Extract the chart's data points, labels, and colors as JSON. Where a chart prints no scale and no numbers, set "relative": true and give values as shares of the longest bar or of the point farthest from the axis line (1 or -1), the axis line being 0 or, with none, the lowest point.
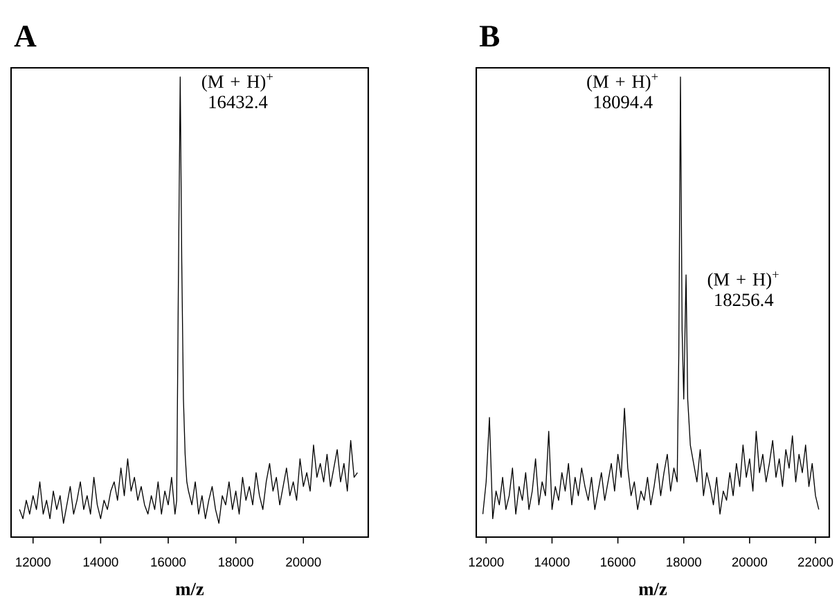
{
  "chart_data": [
    {
      "type": "line",
      "title": "A",
      "xlabel": "m/z",
      "relative": true,
      "xlim": [
        11350,
        21920
      ],
      "xticks": [
        12000,
        14000,
        16000,
        18000,
        20000
      ],
      "annotations": [
        {
          "text": "(M + H)$^{+}$",
          "x": 16355,
          "y": 1.0
        },
        {
          "text": "16432.4",
          "x": 16355,
          "y": 1.0
        }
      ],
      "series": [
        {
          "color": "#000000",
          "x": [
            11600,
            11700,
            11800,
            11900,
            12000,
            12100,
            12200,
            12300,
            12400,
            12500,
            12600,
            12700,
            12800,
            12900,
            13000,
            13100,
            13200,
            13300,
            13400,
            13500,
            13600,
            13700,
            13800,
            13900,
            14000,
            14100,
            14200,
            14300,
            14400,
            14500,
            14600,
            14700,
            14800,
            14900,
            15000,
            15100,
            15200,
            15300,
            15400,
            15500,
            15600,
            15700,
            15800,
            15900,
            16000,
            16100,
            16200,
            16250,
            16300,
            16355,
            16400,
            16450,
            16500,
            16550,
            16600,
            16700,
            16800,
            16900,
            17000,
            17100,
            17200,
            17300,
            17400,
            17500,
            17600,
            17700,
            17800,
            17900,
            18000,
            18100,
            18200,
            18300,
            18400,
            18500,
            18600,
            18700,
            18800,
            18900,
            19000,
            19100,
            19200,
            19300,
            19400,
            19500,
            19600,
            19700,
            19800,
            19900,
            20000,
            20100,
            20200,
            20300,
            20400,
            20500,
            20600,
            20700,
            20800,
            20900,
            21000,
            21100,
            21200,
            21300,
            21400,
            21500,
            21600
          ],
          "values": [
            0.06,
            0.04,
            0.08,
            0.05,
            0.09,
            0.06,
            0.12,
            0.05,
            0.08,
            0.04,
            0.1,
            0.06,
            0.09,
            0.03,
            0.07,
            0.11,
            0.05,
            0.08,
            0.12,
            0.06,
            0.09,
            0.05,
            0.13,
            0.07,
            0.04,
            0.08,
            0.06,
            0.1,
            0.12,
            0.08,
            0.15,
            0.09,
            0.17,
            0.1,
            0.13,
            0.08,
            0.11,
            0.07,
            0.05,
            0.09,
            0.06,
            0.12,
            0.05,
            0.1,
            0.07,
            0.13,
            0.05,
            0.08,
            0.55,
            1.0,
            0.6,
            0.3,
            0.18,
            0.12,
            0.1,
            0.07,
            0.12,
            0.05,
            0.09,
            0.04,
            0.08,
            0.11,
            0.06,
            0.03,
            0.09,
            0.07,
            0.12,
            0.06,
            0.1,
            0.05,
            0.13,
            0.08,
            0.11,
            0.07,
            0.14,
            0.09,
            0.06,
            0.12,
            0.16,
            0.1,
            0.13,
            0.07,
            0.11,
            0.15,
            0.09,
            0.12,
            0.08,
            0.17,
            0.11,
            0.14,
            0.1,
            0.2,
            0.13,
            0.16,
            0.12,
            0.18,
            0.11,
            0.15,
            0.19,
            0.12,
            0.16,
            0.1,
            0.21,
            0.13,
            0.14
          ]
        }
      ]
    },
    {
      "type": "line",
      "title": "B",
      "xlabel": "m/z",
      "relative": true,
      "xlim": [
        11700,
        22420
      ],
      "xticks": [
        12000,
        14000,
        16000,
        18000,
        20000,
        22000
      ],
      "annotations": [
        {
          "text": "(M + H)$^{+}$",
          "x": 17900,
          "y": 1.0
        },
        {
          "text": "18094.4",
          "x": 17900,
          "y": 1.0
        },
        {
          "text": "(M + H)$^{+}$",
          "x": 18070,
          "y": 0.57
        },
        {
          "text": "18256.4",
          "x": 18070,
          "y": 0.57
        }
      ],
      "series": [
        {
          "color": "#000000",
          "x": [
            11900,
            12000,
            12100,
            12200,
            12300,
            12400,
            12500,
            12600,
            12700,
            12800,
            12900,
            13000,
            13100,
            13200,
            13300,
            13400,
            13500,
            13600,
            13700,
            13800,
            13900,
            14000,
            14100,
            14200,
            14300,
            14400,
            14500,
            14600,
            14700,
            14800,
            14900,
            15000,
            15100,
            15200,
            15300,
            15400,
            15500,
            15600,
            15700,
            15800,
            15900,
            16000,
            16100,
            16200,
            16300,
            16400,
            16500,
            16600,
            16700,
            16800,
            16900,
            17000,
            17100,
            17200,
            17300,
            17400,
            17500,
            17600,
            17700,
            17800,
            17850,
            17900,
            17950,
            18000,
            18070,
            18120,
            18200,
            18300,
            18400,
            18500,
            18600,
            18700,
            18800,
            18900,
            19000,
            19100,
            19200,
            19300,
            19400,
            19500,
            19600,
            19700,
            19800,
            19900,
            20000,
            20100,
            20200,
            20300,
            20400,
            20500,
            20600,
            20700,
            20800,
            20900,
            21000,
            21100,
            21200,
            21300,
            21400,
            21500,
            21600,
            21700,
            21800,
            21900,
            22000,
            22100
          ],
          "values": [
            0.05,
            0.12,
            0.26,
            0.04,
            0.1,
            0.07,
            0.13,
            0.06,
            0.09,
            0.15,
            0.05,
            0.11,
            0.08,
            0.14,
            0.06,
            0.1,
            0.17,
            0.07,
            0.12,
            0.09,
            0.23,
            0.06,
            0.11,
            0.08,
            0.14,
            0.1,
            0.16,
            0.07,
            0.13,
            0.09,
            0.15,
            0.11,
            0.08,
            0.13,
            0.06,
            0.1,
            0.14,
            0.08,
            0.12,
            0.16,
            0.1,
            0.18,
            0.13,
            0.28,
            0.15,
            0.09,
            0.12,
            0.06,
            0.1,
            0.08,
            0.13,
            0.07,
            0.11,
            0.16,
            0.09,
            0.14,
            0.18,
            0.1,
            0.15,
            0.12,
            0.4,
            1.0,
            0.45,
            0.3,
            0.57,
            0.3,
            0.2,
            0.16,
            0.12,
            0.19,
            0.09,
            0.14,
            0.11,
            0.07,
            0.13,
            0.05,
            0.1,
            0.08,
            0.14,
            0.09,
            0.16,
            0.11,
            0.2,
            0.13,
            0.17,
            0.1,
            0.23,
            0.14,
            0.18,
            0.12,
            0.16,
            0.21,
            0.13,
            0.17,
            0.11,
            0.19,
            0.15,
            0.22,
            0.12,
            0.18,
            0.14,
            0.2,
            0.11,
            0.16,
            0.09,
            0.06
          ]
        }
      ]
    }
  ]
}
